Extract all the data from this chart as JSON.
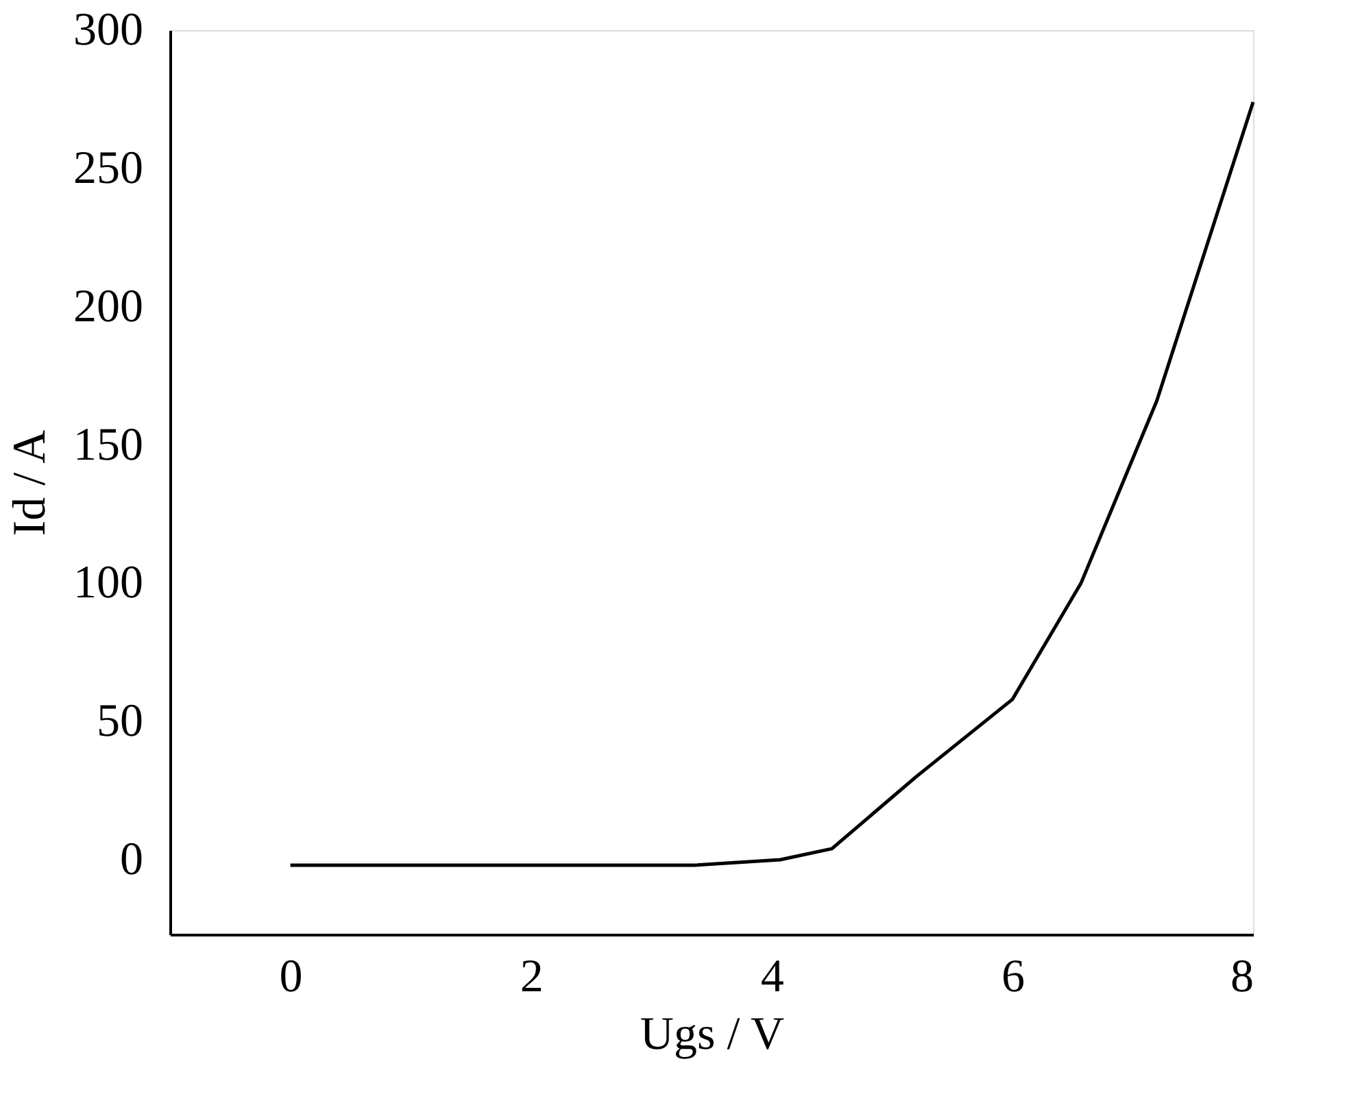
{
  "chart_data": {
    "type": "line",
    "xlabel": "Ugs / V",
    "ylabel": "Id / A",
    "series": [
      {
        "color": "#000000",
        "x": [
          0,
          3.35,
          4.07,
          4.5,
          5.2,
          6,
          6.57,
          7.2,
          8
        ],
        "values": [
          -2,
          -2,
          0,
          4,
          30,
          58,
          100,
          166,
          274
        ]
      }
    ],
    "xlim": [
      -1,
      8
    ],
    "xticks": [
      0,
      2,
      4,
      6,
      8
    ],
    "ylim": [
      -27,
      300
    ],
    "yticks": [
      0,
      50,
      100,
      150,
      200,
      250,
      300
    ],
    "grid": false,
    "marker": "none",
    "line_style": "solid"
  }
}
